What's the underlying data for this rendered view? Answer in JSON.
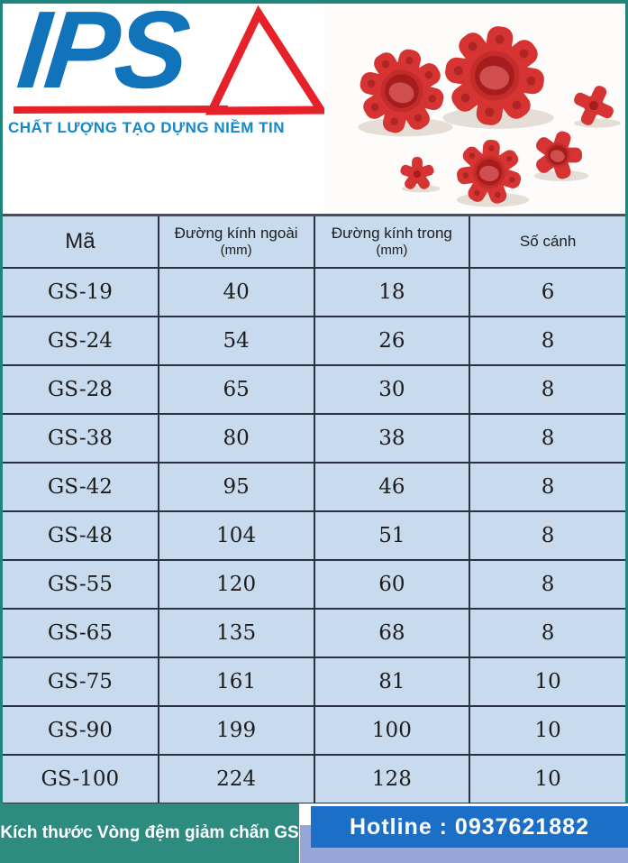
{
  "logo": {
    "text": "IPS",
    "tagline": "CHẤT LƯỢNG TẠO DỰNG NIỀM TIN"
  },
  "product_image": {
    "description": "red-spider-coupling-elastomers"
  },
  "table": {
    "headers": [
      {
        "label": "Mã",
        "sub": ""
      },
      {
        "label": "Đường kính ngoài",
        "sub": "(mm)"
      },
      {
        "label": "Đường kính trong",
        "sub": "(mm)"
      },
      {
        "label": "Số cánh",
        "sub": ""
      }
    ],
    "rows": [
      [
        "GS-19",
        "40",
        "18",
        "6"
      ],
      [
        "GS-24",
        "54",
        "26",
        "8"
      ],
      [
        "GS-28",
        "65",
        "30",
        "8"
      ],
      [
        "GS-38",
        "80",
        "38",
        "8"
      ],
      [
        "GS-42",
        "95",
        "46",
        "8"
      ],
      [
        "GS-48",
        "104",
        "51",
        "8"
      ],
      [
        "GS-55",
        "120",
        "60",
        "8"
      ],
      [
        "GS-65",
        "135",
        "68",
        "8"
      ],
      [
        "GS-75",
        "161",
        "81",
        "10"
      ],
      [
        "GS-90",
        "199",
        "100",
        "10"
      ],
      [
        "GS-100",
        "224",
        "128",
        "10"
      ]
    ]
  },
  "footer": {
    "caption": "Kích thước Vòng đệm giảm chấn GS",
    "hotline": "Hotline : 0937621882"
  },
  "colors": {
    "teal_frame": "#1f857b",
    "table_cell_bg": "#c8dbee",
    "table_border": "#2a3140",
    "logo_blue": "#1173b9",
    "logo_red": "#e6212a",
    "tagline_blue": "#1488cb",
    "footer_teal": "#2e8b80",
    "hotline_blue": "#1b6fc7",
    "periwinkle": "#97a6d9",
    "coupling_red": "#d63333"
  }
}
